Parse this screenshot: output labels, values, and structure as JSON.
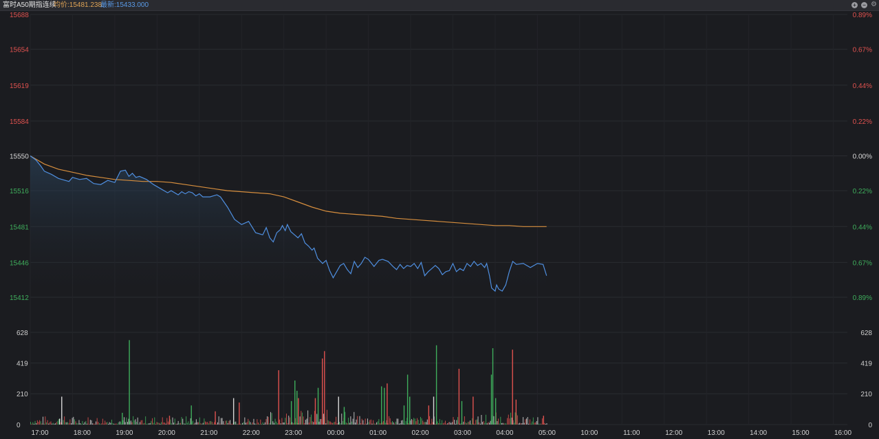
{
  "header": {
    "title": "富时A50期指连续",
    "avg_label": "均价:15481.238",
    "last_label": "最新:15433.000"
  },
  "window_controls": {
    "plus_icon": "plus-circle-icon",
    "minus_icon": "minus-circle-icon",
    "gear_icon": "gear-icon"
  },
  "colors": {
    "background": "#1b1c20",
    "price_line": "#4f8fe0",
    "avg_line": "#d88f3e",
    "up": "#e0524f",
    "down": "#3fae5c",
    "neutral": "#d8d8d8",
    "grid": "#2a2c31"
  },
  "chart_data": {
    "type": "line",
    "price_axis": {
      "ticks": [
        "15688",
        "15654",
        "15619",
        "15584",
        "15550",
        "15516",
        "15481",
        "15446",
        "15412"
      ],
      "tick_values": [
        15688,
        15654,
        15619,
        15584,
        15550,
        15516,
        15481,
        15446,
        15412
      ],
      "tick_colors": [
        "up",
        "up",
        "up",
        "up",
        "neutral",
        "down",
        "down",
        "down",
        "down"
      ],
      "ylim": [
        15412,
        15688
      ],
      "reference": 15550
    },
    "percent_axis": {
      "ticks": [
        "0.89%",
        "0.67%",
        "0.44%",
        "0.22%",
        "0.00%",
        "0.22%",
        "0.44%",
        "0.67%",
        "0.89%"
      ]
    },
    "volume_axis": {
      "ticks": [
        "628",
        "419",
        "210",
        "0"
      ],
      "tick_values": [
        628,
        419,
        210,
        0
      ],
      "ylim": [
        0,
        628
      ]
    },
    "time_axis": {
      "labels": [
        "17:00",
        "18:00",
        "19:00",
        "20:00",
        "21:00",
        "22:00",
        "23:00",
        "00:00",
        "01:00",
        "02:00",
        "03:00",
        "04:00",
        "05:00",
        "10:00",
        "11:00",
        "12:00",
        "13:00",
        "14:00",
        "15:00",
        "16:00"
      ],
      "positions": [
        0,
        60,
        120,
        180,
        240,
        300,
        360,
        420,
        480,
        540,
        600,
        660,
        720,
        780,
        840,
        900,
        960,
        1020,
        1080,
        1140
      ],
      "session_end_index": 733,
      "total_index": 1160
    },
    "series": [
      {
        "key": "price",
        "x": [
          0,
          8,
          15,
          20,
          30,
          40,
          55,
          60,
          70,
          80,
          90,
          100,
          110,
          120,
          128,
          135,
          140,
          145,
          150,
          155,
          165,
          175,
          185,
          195,
          200,
          210,
          215,
          220,
          225,
          230,
          235,
          240,
          245,
          255,
          265,
          270,
          280,
          290,
          300,
          310,
          320,
          330,
          335,
          340,
          345,
          350,
          355,
          358,
          362,
          365,
          370,
          375,
          380,
          385,
          390,
          395,
          400,
          403,
          408,
          415,
          420,
          425,
          430,
          435,
          440,
          445,
          450,
          455,
          460,
          465,
          470,
          475,
          480,
          488,
          495,
          500,
          508,
          515,
          520,
          525,
          530,
          535,
          540,
          545,
          550,
          555,
          560,
          565,
          570,
          575,
          580,
          585,
          590,
          595,
          600,
          605,
          610,
          615,
          620,
          625,
          630,
          635,
          640,
          645,
          648,
          652,
          655,
          660,
          662,
          665,
          670,
          675,
          680,
          685,
          690,
          700,
          710,
          720,
          728,
          733
        ],
        "values": [
          15550,
          15546,
          15540,
          15535,
          15532,
          15528,
          15525,
          15529,
          15527,
          15528,
          15523,
          15522,
          15526,
          15524,
          15535,
          15536,
          15530,
          15533,
          15529,
          15530,
          15527,
          15522,
          15518,
          15514,
          15516,
          15512,
          15515,
          15513,
          15515,
          15514,
          15511,
          15513,
          15510,
          15510,
          15512,
          15510,
          15500,
          15488,
          15483,
          15486,
          15475,
          15473,
          15480,
          15470,
          15466,
          15475,
          15478,
          15482,
          15477,
          15483,
          15476,
          15473,
          15470,
          15474,
          15465,
          15462,
          15458,
          15460,
          15450,
          15445,
          15448,
          15438,
          15431,
          15437,
          15443,
          15445,
          15439,
          15435,
          15447,
          15441,
          15445,
          15451,
          15449,
          15442,
          15448,
          15449,
          15447,
          15442,
          15439,
          15444,
          15440,
          15443,
          15442,
          15445,
          15440,
          15446,
          15433,
          15437,
          15440,
          15443,
          15440,
          15434,
          15437,
          15438,
          15445,
          15437,
          15440,
          15438,
          15445,
          15442,
          15447,
          15443,
          15445,
          15441,
          15445,
          15433,
          15421,
          15418,
          15424,
          15420,
          15418,
          15424,
          15437,
          15447,
          15444,
          15445,
          15441,
          15445,
          15444,
          15433
        ]
      },
      {
        "key": "average",
        "x": [
          0,
          20,
          40,
          60,
          80,
          100,
          120,
          140,
          160,
          180,
          200,
          220,
          240,
          260,
          280,
          300,
          320,
          340,
          360,
          380,
          400,
          420,
          440,
          460,
          480,
          500,
          520,
          540,
          560,
          580,
          600,
          620,
          640,
          660,
          680,
          700,
          720,
          733
        ],
        "values": [
          15550,
          15542,
          15537,
          15534,
          15531,
          15529,
          15527,
          15526,
          15525,
          15525,
          15524,
          15522,
          15520,
          15518,
          15516,
          15515,
          15514,
          15513,
          15510,
          15505,
          15500,
          15496,
          15494,
          15493,
          15492,
          15491,
          15489,
          15488,
          15487,
          15486,
          15485,
          15484,
          15483,
          15482,
          15482,
          15481,
          15481,
          15481
        ]
      }
    ],
    "volume": {
      "spikes": [
        {
          "x": 41,
          "v": 40,
          "c": "neutral"
        },
        {
          "x": 44,
          "v": 190,
          "c": "neutral"
        },
        {
          "x": 130,
          "v": 80,
          "c": "down"
        },
        {
          "x": 140,
          "v": 575,
          "c": "down"
        },
        {
          "x": 197,
          "v": 60,
          "c": "up"
        },
        {
          "x": 228,
          "v": 130,
          "c": "down"
        },
        {
          "x": 262,
          "v": 90,
          "c": "up"
        },
        {
          "x": 288,
          "v": 180,
          "c": "neutral"
        },
        {
          "x": 296,
          "v": 150,
          "c": "up"
        },
        {
          "x": 352,
          "v": 370,
          "c": "up"
        },
        {
          "x": 370,
          "v": 160,
          "c": "down"
        },
        {
          "x": 375,
          "v": 300,
          "c": "down"
        },
        {
          "x": 378,
          "v": 230,
          "c": "down"
        },
        {
          "x": 380,
          "v": 180,
          "c": "up"
        },
        {
          "x": 404,
          "v": 180,
          "c": "up"
        },
        {
          "x": 408,
          "v": 250,
          "c": "down"
        },
        {
          "x": 414,
          "v": 450,
          "c": "up"
        },
        {
          "x": 417,
          "v": 500,
          "c": "up"
        },
        {
          "x": 437,
          "v": 190,
          "c": "neutral"
        },
        {
          "x": 445,
          "v": 120,
          "c": "down"
        },
        {
          "x": 498,
          "v": 260,
          "c": "down"
        },
        {
          "x": 502,
          "v": 250,
          "c": "down"
        },
        {
          "x": 506,
          "v": 280,
          "c": "up"
        },
        {
          "x": 530,
          "v": 130,
          "c": "down"
        },
        {
          "x": 535,
          "v": 340,
          "c": "down"
        },
        {
          "x": 538,
          "v": 190,
          "c": "down"
        },
        {
          "x": 565,
          "v": 130,
          "c": "up"
        },
        {
          "x": 572,
          "v": 190,
          "c": "neutral"
        },
        {
          "x": 576,
          "v": 540,
          "c": "down"
        },
        {
          "x": 608,
          "v": 380,
          "c": "up"
        },
        {
          "x": 612,
          "v": 160,
          "c": "down"
        },
        {
          "x": 628,
          "v": 190,
          "c": "up"
        },
        {
          "x": 654,
          "v": 340,
          "c": "down"
        },
        {
          "x": 656,
          "v": 520,
          "c": "down"
        },
        {
          "x": 660,
          "v": 180,
          "c": "down"
        },
        {
          "x": 684,
          "v": 510,
          "c": "up"
        },
        {
          "x": 689,
          "v": 170,
          "c": "up"
        },
        {
          "x": 728,
          "v": 60,
          "c": "up"
        }
      ]
    }
  }
}
